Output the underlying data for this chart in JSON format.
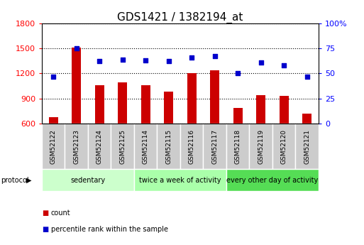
{
  "title": "GDS1421 / 1382194_at",
  "samples": [
    "GSM52122",
    "GSM52123",
    "GSM52124",
    "GSM52125",
    "GSM52114",
    "GSM52115",
    "GSM52116",
    "GSM52117",
    "GSM52118",
    "GSM52119",
    "GSM52120",
    "GSM52121"
  ],
  "counts": [
    680,
    1510,
    1060,
    1090,
    1060,
    980,
    1200,
    1240,
    790,
    940,
    930,
    720
  ],
  "percentiles": [
    47,
    75,
    62,
    64,
    63,
    62,
    66,
    67,
    50,
    61,
    58,
    47
  ],
  "ylim_left": [
    600,
    1800
  ],
  "ylim_right": [
    0,
    100
  ],
  "yticks_left": [
    600,
    900,
    1200,
    1500,
    1800
  ],
  "yticks_right": [
    0,
    25,
    50,
    75,
    100
  ],
  "bar_color": "#cc0000",
  "dot_color": "#0000cc",
  "groups": [
    {
      "label": "sedentary",
      "indices": [
        0,
        1,
        2,
        3
      ],
      "color": "#ccffcc"
    },
    {
      "label": "twice a week of activity",
      "indices": [
        4,
        5,
        6,
        7
      ],
      "color": "#aaffaa"
    },
    {
      "label": "every other day of activity",
      "indices": [
        8,
        9,
        10,
        11
      ],
      "color": "#55dd55"
    }
  ],
  "protocol_label": "protocol",
  "legend_items": [
    {
      "color": "#cc0000",
      "label": "count"
    },
    {
      "color": "#0000cc",
      "label": "percentile rank within the sample"
    }
  ],
  "bg_color": "#ffffff",
  "plot_bg": "#ffffff",
  "sample_box_color": "#cccccc",
  "grid_linestyle": "dotted",
  "grid_color": "#000000",
  "title_fontsize": 11,
  "axis_fontsize": 8,
  "tick_fontsize": 7.5,
  "bar_width": 0.4
}
